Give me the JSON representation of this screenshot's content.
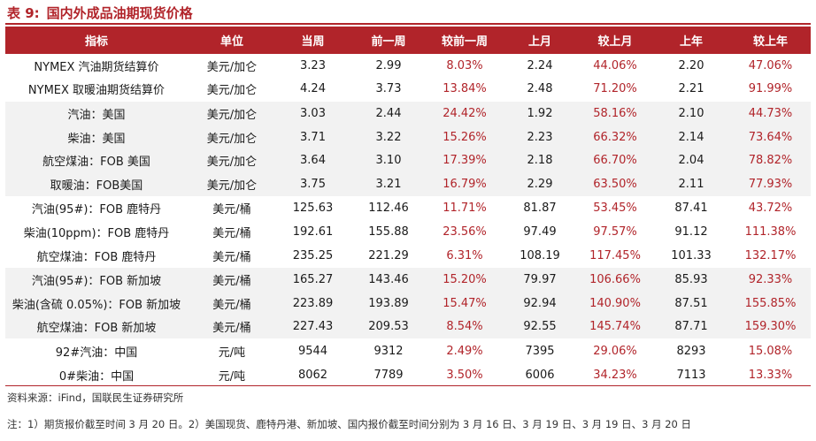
{
  "title": {
    "label": "表 9:",
    "text": "国内外成品油期现货价格"
  },
  "columns": [
    "指标",
    "单位",
    "当周",
    "前一周",
    "较前一周",
    "上月",
    "较上月",
    "上年",
    "较上年"
  ],
  "rows": [
    [
      "NYMEX 汽油期货结算价",
      "美元/加仑",
      "3.23",
      "2.99",
      "8.03%",
      "2.24",
      "44.06%",
      "2.20",
      "47.06%"
    ],
    [
      "NYMEX 取暖油期货结算价",
      "美元/加仑",
      "4.24",
      "3.73",
      "13.84%",
      "2.48",
      "71.20%",
      "2.21",
      "91.99%"
    ],
    [
      "汽油：美国",
      "美元/加仑",
      "3.03",
      "2.44",
      "24.42%",
      "1.92",
      "58.16%",
      "2.10",
      "44.73%"
    ],
    [
      "柴油：美国",
      "美元/加仑",
      "3.71",
      "3.22",
      "15.26%",
      "2.23",
      "66.32%",
      "2.14",
      "73.64%"
    ],
    [
      "航空煤油：FOB 美国",
      "美元/加仑",
      "3.64",
      "3.10",
      "17.39%",
      "2.18",
      "66.70%",
      "2.04",
      "78.82%"
    ],
    [
      "取暖油：FOB美国",
      "美元/加仑",
      "3.75",
      "3.21",
      "16.79%",
      "2.29",
      "63.50%",
      "2.11",
      "77.93%"
    ],
    [
      "汽油(95#)：FOB 鹿特丹",
      "美元/桶",
      "125.63",
      "112.46",
      "11.71%",
      "81.87",
      "53.45%",
      "87.41",
      "43.72%"
    ],
    [
      "柴油(10ppm)：FOB 鹿特丹",
      "美元/桶",
      "192.61",
      "155.88",
      "23.56%",
      "97.49",
      "97.57%",
      "91.12",
      "111.38%"
    ],
    [
      "航空煤油：FOB 鹿特丹",
      "美元/桶",
      "235.25",
      "221.29",
      "6.31%",
      "108.19",
      "117.45%",
      "101.33",
      "132.17%"
    ],
    [
      "汽油(95#)：FOB 新加坡",
      "美元/桶",
      "165.27",
      "143.46",
      "15.20%",
      "79.97",
      "106.66%",
      "85.93",
      "92.33%"
    ],
    [
      "柴油(含硫 0.05%)：FOB 新加坡",
      "美元/桶",
      "223.89",
      "193.89",
      "15.47%",
      "92.94",
      "140.90%",
      "87.51",
      "155.85%"
    ],
    [
      "航空煤油：FOB 新加坡",
      "美元/桶",
      "227.43",
      "209.53",
      "8.54%",
      "92.55",
      "145.74%",
      "87.71",
      "159.30%"
    ],
    [
      "92#汽油：中国",
      "元/吨",
      "9544",
      "9312",
      "2.49%",
      "7395",
      "29.06%",
      "8293",
      "15.08%"
    ],
    [
      "0#柴油：中国",
      "元/吨",
      "8062",
      "7789",
      "3.50%",
      "6006",
      "34.23%",
      "7113",
      "13.33%"
    ]
  ],
  "source": "资料来源：iFind，国联民生证券研究所",
  "note": "注：1）期货报价截至时间 3 月 20 日。2）美国现货、鹿特丹港、新加坡、国内报价截至时间分别为 3 月 16 日、3 月 19 日、3 月 19 日、3 月 20 日",
  "colors": {
    "accent": "#b1242a",
    "shade": "#f2f2f2"
  }
}
